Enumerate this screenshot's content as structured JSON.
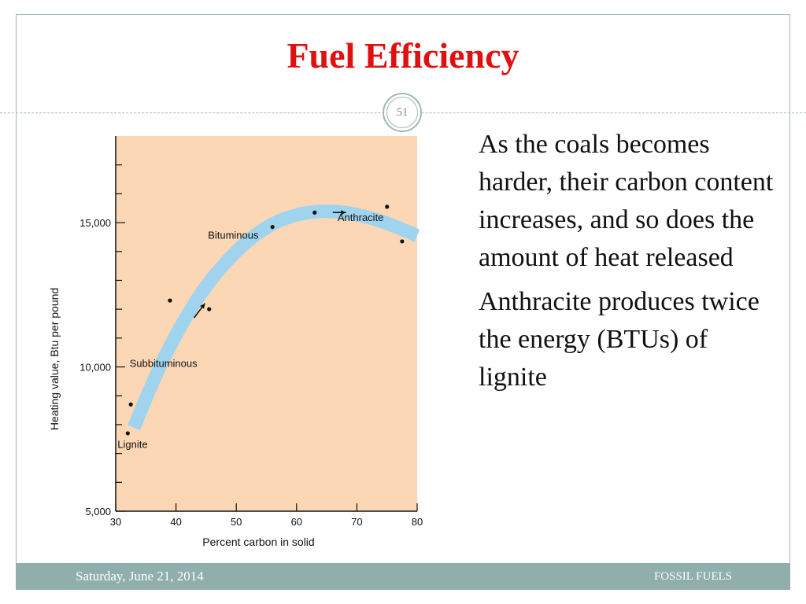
{
  "slide": {
    "title": "Fuel Efficiency",
    "number": "51",
    "bullets": [
      "As the coals becomes harder, their carbon content increases, and so does the amount of heat released",
      "Anthracite produces twice the energy (BTUs) of lignite"
    ],
    "footer_date": "Saturday, June 21, 2014",
    "footer_right": "FOSSIL FUELS"
  },
  "colors": {
    "title": "#e01010",
    "plot_background": "#fbd7b5",
    "band": "#9fd3ee",
    "footer": "#8faeac"
  },
  "chart_data": {
    "type": "scatter",
    "xlabel": "Percent carbon in solid",
    "ylabel": "Heating value, Btu per pound",
    "xlim": [
      30,
      80
    ],
    "ylim": [
      5000,
      18000
    ],
    "x_ticks": [
      30,
      40,
      50,
      60,
      70,
      80
    ],
    "x_tick_labels": [
      "30",
      "40",
      "50",
      "60",
      "70",
      "80"
    ],
    "y_ticks": [
      5000,
      10000,
      15000
    ],
    "y_tick_labels": [
      "5,000",
      "10,000",
      "15,000"
    ],
    "points": [
      {
        "x": 32,
        "y": 7700
      },
      {
        "x": 32.5,
        "y": 8700
      },
      {
        "x": 39,
        "y": 12300
      },
      {
        "x": 45.5,
        "y": 12000
      },
      {
        "x": 56,
        "y": 14850
      },
      {
        "x": 63,
        "y": 15350
      },
      {
        "x": 75,
        "y": 15550
      },
      {
        "x": 77.5,
        "y": 14350
      }
    ],
    "trend_band": [
      {
        "x": 33,
        "y": 7900
      },
      {
        "x": 38,
        "y": 10300
      },
      {
        "x": 44,
        "y": 12500
      },
      {
        "x": 50,
        "y": 14000
      },
      {
        "x": 56,
        "y": 14950
      },
      {
        "x": 62,
        "y": 15350
      },
      {
        "x": 68,
        "y": 15350
      },
      {
        "x": 74,
        "y": 15050
      },
      {
        "x": 80,
        "y": 14550
      }
    ],
    "arrows": [
      {
        "x": 43,
        "y": 11700,
        "dx": 1.8,
        "dy": 500
      },
      {
        "x": 66,
        "y": 15350,
        "dx": 2.2,
        "dy": 0
      }
    ],
    "annotations": [
      {
        "text": "Lignite",
        "x": 30.3,
        "y": 7200
      },
      {
        "text": "Subbituminous",
        "x": 32.3,
        "y": 10000
      },
      {
        "text": "Bituminous",
        "x": 45.3,
        "y": 14450
      },
      {
        "text": "Anthracite",
        "x": 66.8,
        "y": 15050
      }
    ]
  }
}
